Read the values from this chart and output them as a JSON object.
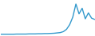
{
  "x": [
    0,
    1,
    2,
    3,
    4,
    5,
    6,
    7,
    8,
    9,
    10,
    11,
    12,
    13,
    14,
    15,
    16,
    17,
    18,
    19,
    20,
    21,
    22,
    23,
    24,
    25,
    26,
    27,
    28,
    29,
    30
  ],
  "y": [
    0.3,
    0.3,
    0.3,
    0.3,
    0.3,
    0.35,
    0.35,
    0.35,
    0.35,
    0.4,
    0.4,
    0.4,
    0.45,
    0.45,
    0.5,
    0.5,
    0.55,
    0.6,
    0.7,
    0.8,
    1.1,
    1.8,
    3.2,
    5.5,
    9.5,
    6.5,
    8.2,
    5.0,
    6.8,
    5.2,
    4.8
  ],
  "line_color": "#3399cc",
  "background_color": "#ffffff",
  "linewidth": 1.0,
  "ylim_max": 10.5
}
